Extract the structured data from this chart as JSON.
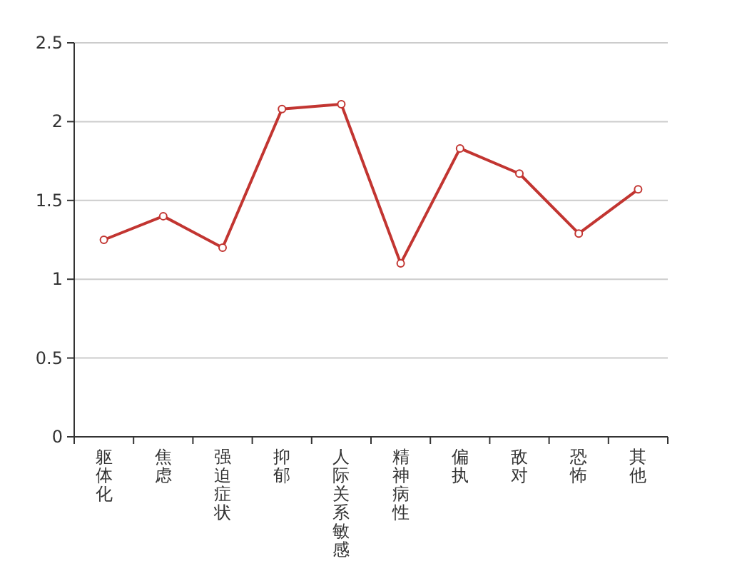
{
  "chart_data": {
    "type": "line",
    "categories": [
      "躯体化",
      "焦虑",
      "强迫症状",
      "抑郁",
      "人际关系敏感",
      "精神病性",
      "偏执",
      "敌对",
      "恐怖",
      "其他"
    ],
    "series": [
      {
        "color": "#c23531",
        "values": [
          1.25,
          1.4,
          1.2,
          2.08,
          2.11,
          1.1,
          1.83,
          1.67,
          1.29,
          1.57
        ]
      }
    ],
    "ylim": [
      0,
      2.5
    ],
    "yticks": [
      0,
      0.5,
      1,
      1.5,
      2,
      2.5
    ],
    "grid": "y",
    "marker": "circle",
    "line_style": "solid"
  }
}
